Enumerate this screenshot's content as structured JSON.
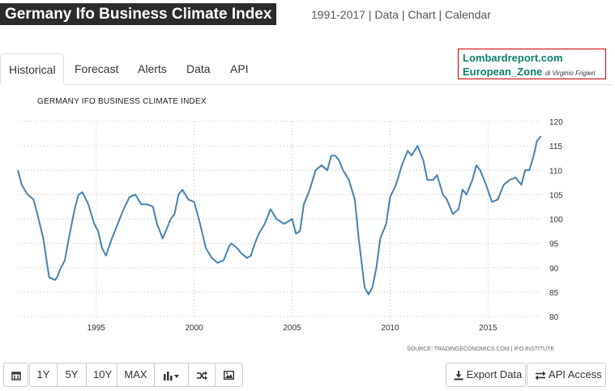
{
  "header": {
    "title": "Germany Ifo Business Climate Index",
    "links": "1991-2017 | Data | Chart | Calendar"
  },
  "tabs": [
    {
      "label": "Historical"
    },
    {
      "label": "Forecast"
    },
    {
      "label": "Alerts"
    },
    {
      "label": "Data"
    },
    {
      "label": "API"
    }
  ],
  "promo": {
    "line1": "Lombardreport.com",
    "line2": "European_Zone",
    "line2_small": "di Virginio Frigieri"
  },
  "chart_data": {
    "type": "line",
    "title": "GERMANY IFO BUSINESS CLIMATE INDEX",
    "xlabel": "",
    "ylabel": "",
    "xlim": [
      1991.0,
      2017.8
    ],
    "ylim": [
      80,
      120
    ],
    "yticks": [
      80,
      85,
      90,
      95,
      100,
      105,
      110,
      115,
      120
    ],
    "xticks": [
      1995,
      2000,
      2005,
      2010,
      2015
    ],
    "grid": true,
    "color": "#4682b4",
    "series": [
      {
        "x": [
          1991.0,
          1991.2,
          1991.5,
          1991.8,
          1992.0,
          1992.3,
          1992.6,
          1992.9,
          1993.0,
          1993.2,
          1993.4,
          1993.6,
          1993.9,
          1994.1,
          1994.3,
          1994.6,
          1994.9,
          1995.1,
          1995.3,
          1995.5,
          1995.8,
          1996.0,
          1996.2,
          1996.4,
          1996.7,
          1997.0,
          1997.3,
          1997.6,
          1997.9,
          1998.1,
          1998.4,
          1998.6,
          1998.8,
          1999.0,
          1999.2,
          1999.4,
          1999.7,
          2000.0,
          2000.3,
          2000.6,
          2000.9,
          2001.2,
          2001.5,
          2001.8,
          2001.9,
          2002.2,
          2002.4,
          2002.7,
          2002.9,
          2003.1,
          2003.3,
          2003.6,
          2003.9,
          2004.2,
          2004.4,
          2004.6,
          2004.8,
          2005.0,
          2005.2,
          2005.4,
          2005.6,
          2005.9,
          2006.2,
          2006.5,
          2006.8,
          2007.0,
          2007.2,
          2007.4,
          2007.6,
          2007.9,
          2008.2,
          2008.4,
          2008.7,
          2008.9,
          2009.1,
          2009.3,
          2009.5,
          2009.8,
          2010.0,
          2010.3,
          2010.6,
          2010.9,
          2011.1,
          2011.4,
          2011.7,
          2011.9,
          2012.2,
          2012.4,
          2012.7,
          2012.9,
          2013.2,
          2013.5,
          2013.7,
          2013.9,
          2014.2,
          2014.4,
          2014.6,
          2014.9,
          2015.2,
          2015.5,
          2015.8,
          2016.1,
          2016.4,
          2016.7,
          2016.9,
          2017.1,
          2017.3,
          2017.5,
          2017.7
        ],
        "values": [
          110,
          107,
          105,
          104,
          101,
          96,
          88,
          87.5,
          88,
          90,
          91.5,
          96,
          102,
          105,
          105.5,
          103,
          99,
          97.5,
          94,
          92.5,
          96,
          98,
          100,
          102,
          104.5,
          105,
          103,
          103,
          102.5,
          99,
          96,
          98,
          100,
          101,
          105,
          106,
          104,
          103.5,
          99,
          94,
          92,
          91,
          91.5,
          94.5,
          95,
          94,
          93,
          92,
          92.5,
          95,
          97,
          99,
          102,
          100,
          99.5,
          99,
          99.5,
          100,
          97,
          97.5,
          103,
          106,
          110,
          111,
          110,
          113,
          113,
          112,
          110,
          108,
          104,
          96,
          86,
          84.5,
          86,
          90,
          96,
          99,
          104.5,
          107,
          111,
          114,
          113,
          115,
          112,
          108,
          108,
          109,
          105,
          104,
          101,
          102,
          106,
          105,
          108,
          111,
          110,
          107,
          103.5,
          104,
          107,
          108,
          108.5,
          107,
          110,
          110,
          112.5,
          116,
          117
        ]
      }
    ],
    "source": "SOURCE: TRADINGECONOMICS.COM | IFO INSTITUTE"
  },
  "toolbar": {
    "calendar_icon": "calendar-icon",
    "range_buttons": [
      "1Y",
      "5Y",
      "10Y",
      "MAX"
    ],
    "chart_type_icon": "bar-chart-icon",
    "compare_icon": "shuffle-icon",
    "image_icon": "image-icon",
    "export_label": "Export Data",
    "api_label": "API Access"
  }
}
